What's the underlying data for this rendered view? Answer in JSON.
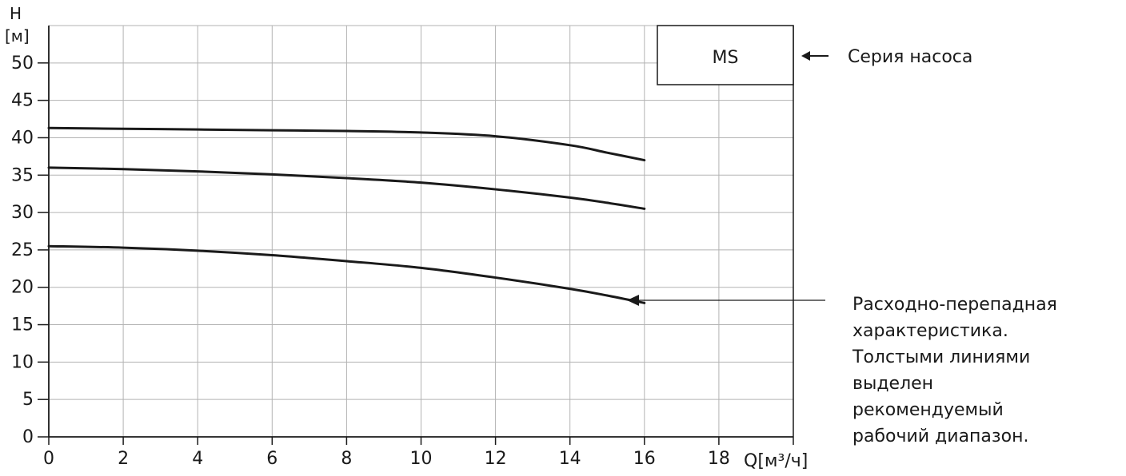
{
  "chart_data": {
    "type": "line",
    "title": "",
    "ylabel_name": "H",
    "ylabel_unit": "[м]",
    "xlabel": "Q[м³/ч]",
    "xlim": [
      0,
      20
    ],
    "ylim": [
      0,
      55
    ],
    "xticks": [
      0,
      2,
      4,
      6,
      8,
      10,
      12,
      14,
      16,
      18
    ],
    "yticks": [
      0,
      5,
      10,
      15,
      20,
      25,
      30,
      35,
      40,
      45,
      50
    ],
    "grid": true,
    "series": [
      {
        "x": [
          0,
          2,
          4,
          6,
          8,
          10,
          12,
          14,
          15,
          16
        ],
        "y": [
          41.3,
          41.2,
          41.1,
          41.0,
          40.9,
          40.7,
          40.2,
          39.0,
          38.0,
          37.0
        ]
      },
      {
        "x": [
          0,
          2,
          4,
          6,
          8,
          10,
          12,
          14,
          15,
          16
        ],
        "y": [
          36.0,
          35.8,
          35.5,
          35.1,
          34.6,
          34.0,
          33.1,
          32.0,
          31.3,
          30.5
        ]
      },
      {
        "x": [
          0,
          2,
          4,
          6,
          8,
          10,
          12,
          14,
          15,
          16
        ],
        "y": [
          25.5,
          25.3,
          24.9,
          24.3,
          23.5,
          22.6,
          21.3,
          19.8,
          18.9,
          17.9
        ]
      }
    ]
  },
  "series_box_label": "MS",
  "annotations": {
    "series_label": "Серия насоса",
    "curve_note_lines": [
      "Расходно-перепадная",
      "характеристика.",
      "Толстыми линиями",
      "выделен",
      "рекомендуемый",
      "рабочий диапазон."
    ]
  },
  "colors": {
    "axis": "#1a1a1a",
    "grid": "#b3b3b3",
    "curve": "#1a1a1a"
  }
}
